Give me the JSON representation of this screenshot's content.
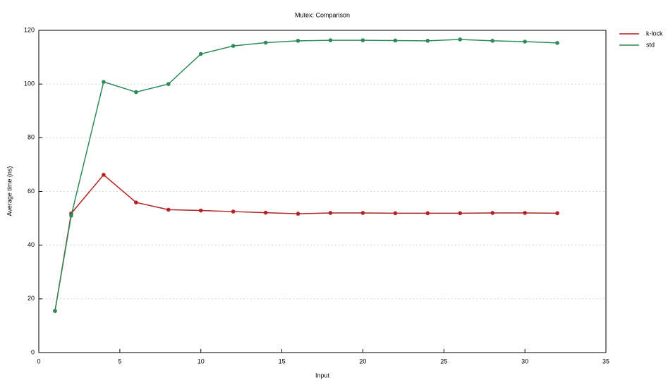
{
  "chart_data": {
    "type": "line",
    "title": "Mutex: Comparison",
    "x_label": "Input",
    "y_label": "Average time (ns)",
    "x": [
      1,
      2,
      4,
      6,
      8,
      10,
      12,
      14,
      16,
      18,
      20,
      22,
      24,
      26,
      28,
      30,
      32
    ],
    "series": [
      {
        "name": "k-lock",
        "color": "#b22222",
        "values": [
          15.5,
          51.8,
          66.2,
          55.9,
          53.2,
          52.9,
          52.5,
          52.1,
          51.7,
          52,
          52,
          51.9,
          51.9,
          51.9,
          52,
          52,
          51.9
        ]
      },
      {
        "name": "std",
        "color": "#2e8b57",
        "values": [
          15.5,
          51,
          100.8,
          97,
          100,
          111.2,
          114.2,
          115.4,
          116.1,
          116.3,
          116.3,
          116.2,
          116.1,
          116.6,
          116.1,
          115.8,
          115.3
        ]
      }
    ],
    "xlim": [
      0,
      35
    ],
    "xticks": [
      0,
      5,
      10,
      15,
      20,
      25,
      30,
      35
    ],
    "ylim": [
      0,
      120
    ],
    "yticks": [
      0,
      20,
      40,
      60,
      80,
      100,
      120
    ],
    "grid": true,
    "legend": "outside-top-right"
  }
}
